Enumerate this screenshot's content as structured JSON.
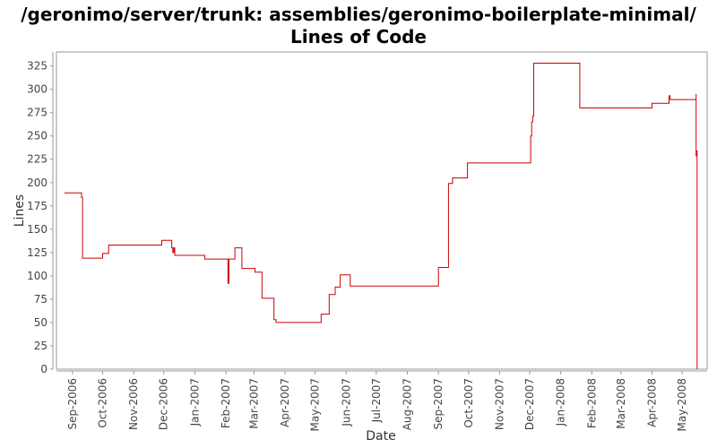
{
  "chart_data": {
    "type": "line",
    "title": "/geronimo/server/trunk: assemblies/geronimo-boilerplate-minimal/ Lines of Code",
    "xlabel": "Date",
    "ylabel": "Lines",
    "ylim": [
      0,
      340
    ],
    "y_ticks": [
      0,
      25,
      50,
      75,
      100,
      125,
      150,
      175,
      200,
      225,
      250,
      275,
      300,
      325
    ],
    "x_ticks": [
      {
        "label": "Sep-2006",
        "date": "2006-09-01"
      },
      {
        "label": "Oct-2006",
        "date": "2006-10-01"
      },
      {
        "label": "Nov-2006",
        "date": "2006-11-01"
      },
      {
        "label": "Dec-2006",
        "date": "2006-12-01"
      },
      {
        "label": "Jan-2007",
        "date": "2007-01-01"
      },
      {
        "label": "Feb-2007",
        "date": "2007-02-01"
      },
      {
        "label": "Mar-2007",
        "date": "2007-03-01"
      },
      {
        "label": "Apr-2007",
        "date": "2007-04-01"
      },
      {
        "label": "May-2007",
        "date": "2007-05-01"
      },
      {
        "label": "Jun-2007",
        "date": "2007-06-01"
      },
      {
        "label": "Jul-2007",
        "date": "2007-07-01"
      },
      {
        "label": "Aug-2007",
        "date": "2007-08-01"
      },
      {
        "label": "Sep-2007",
        "date": "2007-09-01"
      },
      {
        "label": "Oct-2007",
        "date": "2007-10-01"
      },
      {
        "label": "Nov-2007",
        "date": "2007-11-01"
      },
      {
        "label": "Dec-2007",
        "date": "2007-12-01"
      },
      {
        "label": "Jan-2008",
        "date": "2008-01-01"
      },
      {
        "label": "Feb-2008",
        "date": "2008-02-01"
      },
      {
        "label": "Mar-2008",
        "date": "2008-03-01"
      },
      {
        "label": "Apr-2008",
        "date": "2008-04-01"
      },
      {
        "label": "May-2008",
        "date": "2008-05-01"
      }
    ],
    "xlim": [
      "2006-08-16",
      "2008-05-26"
    ],
    "grid": false,
    "series": [
      {
        "color": "#cc0000",
        "step": true,
        "points": [
          [
            "2006-08-24",
            189
          ],
          [
            "2006-09-09",
            189
          ],
          [
            "2006-09-10",
            184
          ],
          [
            "2006-09-11",
            119
          ],
          [
            "2006-09-30",
            119
          ],
          [
            "2006-10-01",
            124
          ],
          [
            "2006-10-06",
            124
          ],
          [
            "2006-10-07",
            133
          ],
          [
            "2006-11-28",
            133
          ],
          [
            "2006-11-29",
            138
          ],
          [
            "2006-12-08",
            138
          ],
          [
            "2006-12-09",
            130
          ],
          [
            "2006-12-10",
            125
          ],
          [
            "2006-12-11",
            130
          ],
          [
            "2006-12-12",
            122
          ],
          [
            "2007-01-10",
            122
          ],
          [
            "2007-01-11",
            118
          ],
          [
            "2007-02-02",
            118
          ],
          [
            "2007-02-03",
            92
          ],
          [
            "2007-02-04",
            118
          ],
          [
            "2007-02-09",
            118
          ],
          [
            "2007-02-10",
            130
          ],
          [
            "2007-02-16",
            130
          ],
          [
            "2007-02-17",
            108
          ],
          [
            "2007-03-01",
            108
          ],
          [
            "2007-03-02",
            104
          ],
          [
            "2007-03-08",
            104
          ],
          [
            "2007-03-09",
            76
          ],
          [
            "2007-03-20",
            76
          ],
          [
            "2007-03-21",
            53
          ],
          [
            "2007-03-23",
            50
          ],
          [
            "2007-05-06",
            50
          ],
          [
            "2007-05-07",
            59
          ],
          [
            "2007-05-14",
            59
          ],
          [
            "2007-05-15",
            80
          ],
          [
            "2007-05-20",
            80
          ],
          [
            "2007-05-21",
            88
          ],
          [
            "2007-05-25",
            88
          ],
          [
            "2007-05-26",
            101
          ],
          [
            "2007-06-04",
            101
          ],
          [
            "2007-06-05",
            89
          ],
          [
            "2007-08-31",
            89
          ],
          [
            "2007-09-01",
            109
          ],
          [
            "2007-09-10",
            109
          ],
          [
            "2007-09-11",
            199
          ],
          [
            "2007-09-14",
            199
          ],
          [
            "2007-09-15",
            205
          ],
          [
            "2007-09-29",
            205
          ],
          [
            "2007-09-30",
            221
          ],
          [
            "2007-12-01",
            221
          ],
          [
            "2007-12-02",
            250
          ],
          [
            "2007-12-03",
            265
          ],
          [
            "2007-12-04",
            271
          ],
          [
            "2007-12-05",
            328
          ],
          [
            "2008-01-19",
            328
          ],
          [
            "2008-01-20",
            280
          ],
          [
            "2008-03-31",
            280
          ],
          [
            "2008-04-01",
            285
          ],
          [
            "2008-04-17",
            285
          ],
          [
            "2008-04-18",
            293
          ],
          [
            "2008-04-19",
            289
          ],
          [
            "2008-05-14",
            289
          ],
          [
            "2008-05-15",
            295
          ],
          [
            "2008-05-15",
            228
          ],
          [
            "2008-05-15",
            234
          ],
          [
            "2008-05-16",
            234
          ],
          [
            "2008-05-16",
            0
          ]
        ]
      }
    ]
  }
}
